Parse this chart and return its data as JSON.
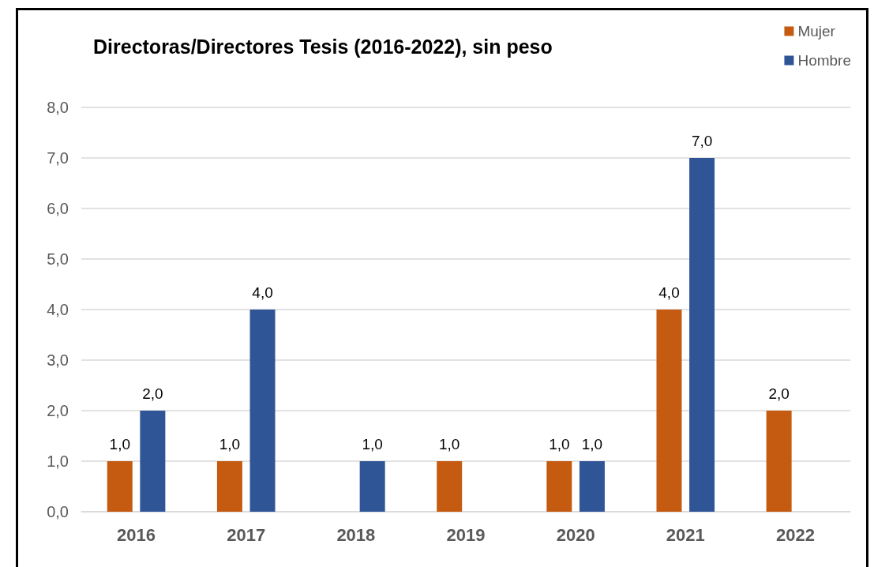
{
  "chart_data": {
    "type": "bar",
    "title": "Directoras/Directores Tesis (2016-2022), sin peso",
    "categories": [
      "2016",
      "2017",
      "2018",
      "2019",
      "2020",
      "2021",
      "2022"
    ],
    "series": [
      {
        "name": "Mujer",
        "color": "#c55a11",
        "values": [
          1,
          1,
          null,
          1,
          1,
          4,
          2
        ],
        "value_labels": [
          "1,0",
          "1,0",
          null,
          "1,0",
          "1,0",
          "4,0",
          "2,0"
        ]
      },
      {
        "name": "Hombre",
        "color": "#2f5597",
        "values": [
          2,
          4,
          1,
          null,
          1,
          7,
          null
        ],
        "value_labels": [
          "2,0",
          "4,0",
          "1,0",
          null,
          "1,0",
          "7,0",
          null
        ]
      }
    ],
    "ylim": [
      0,
      8
    ],
    "yticks": [
      {
        "value": 0,
        "label": "0,0"
      },
      {
        "value": 1,
        "label": "1,0"
      },
      {
        "value": 2,
        "label": "2,0"
      },
      {
        "value": 3,
        "label": "3,0"
      },
      {
        "value": 4,
        "label": "4,0"
      },
      {
        "value": 5,
        "label": "5,0"
      },
      {
        "value": 6,
        "label": "6,0"
      },
      {
        "value": 7,
        "label": "7,0"
      },
      {
        "value": 8,
        "label": "8,0"
      }
    ],
    "grid": "y",
    "legend": "top right"
  }
}
